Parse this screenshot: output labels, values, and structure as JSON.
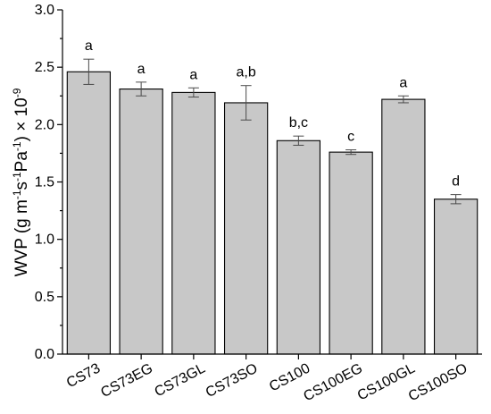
{
  "chart_data": {
    "type": "bar",
    "title": "",
    "xlabel": "",
    "ylabel": {
      "prefix": "WVP (g m",
      "sup1": "-1",
      "mid1": "s",
      "sup2": "-1",
      "mid2": "Pa",
      "sup3": "-1",
      "mid3": ") × 10",
      "sup4": "-9"
    },
    "categories": [
      "CS73",
      "CS73EG",
      "CS73GL",
      "CS73SO",
      "CS100",
      "CS100EG",
      "CS100GL",
      "CS100SO"
    ],
    "values": [
      2.46,
      2.31,
      2.28,
      2.19,
      1.86,
      1.76,
      2.22,
      1.35
    ],
    "errors": [
      0.11,
      0.06,
      0.04,
      0.15,
      0.04,
      0.02,
      0.03,
      0.04
    ],
    "significance": [
      "a",
      "a",
      "a",
      "a,b",
      "b,c",
      "c",
      "a",
      "d"
    ],
    "ylim": [
      0,
      3.0
    ],
    "yticks": [
      "0.0",
      "0.5",
      "1.0",
      "1.5",
      "2.0",
      "2.5",
      "3.0"
    ],
    "grid": false,
    "bar_color": "#c8c8c8",
    "edge_color": "#000000"
  }
}
